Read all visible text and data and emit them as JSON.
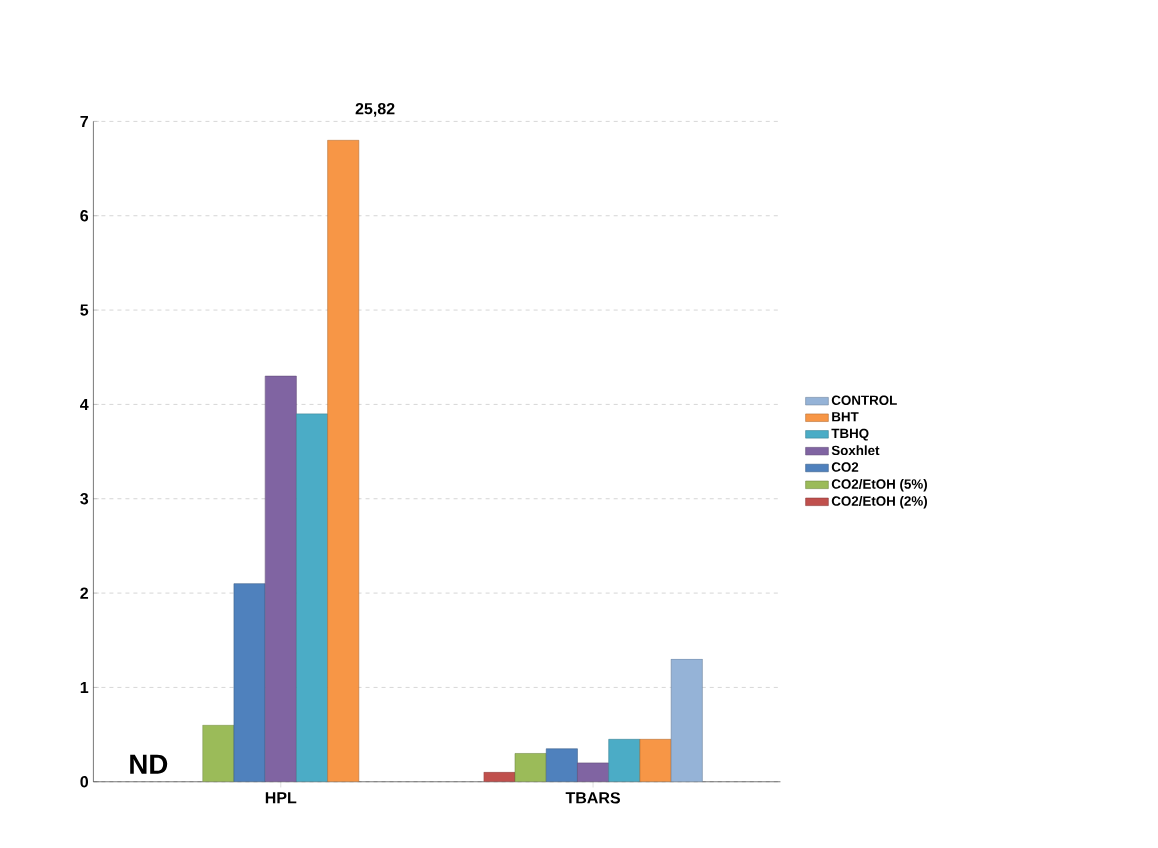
{
  "chart_data": {
    "type": "bar",
    "categories": [
      "HPL",
      "TBARS"
    ],
    "series": [
      {
        "name": "CO2/EtOH (2%)",
        "color": "#c0504d",
        "values": [
          null,
          0.1
        ]
      },
      {
        "name": "CO2/EtOH (5%)",
        "color": "#9bbb59",
        "values": [
          0.6,
          0.3
        ]
      },
      {
        "name": "CO2",
        "color": "#4f81bd",
        "values": [
          2.1,
          0.35
        ]
      },
      {
        "name": "Soxhlet",
        "color": "#8064a2",
        "values": [
          4.3,
          0.2
        ]
      },
      {
        "name": "TBHQ",
        "color": "#4bacc6",
        "values": [
          3.9,
          0.45
        ]
      },
      {
        "name": "BHT",
        "color": "#f79646",
        "values": [
          6.8,
          0.45
        ]
      },
      {
        "name": "CONTROL",
        "color": "#95b3d7",
        "values": [
          null,
          1.3
        ]
      }
    ],
    "ylim": [
      0,
      7
    ],
    "yticks": [
      0,
      1,
      2,
      3,
      4,
      5,
      6,
      7
    ],
    "grid": "y",
    "legend": "right",
    "annotations": [
      "ND",
      "25,82"
    ]
  }
}
